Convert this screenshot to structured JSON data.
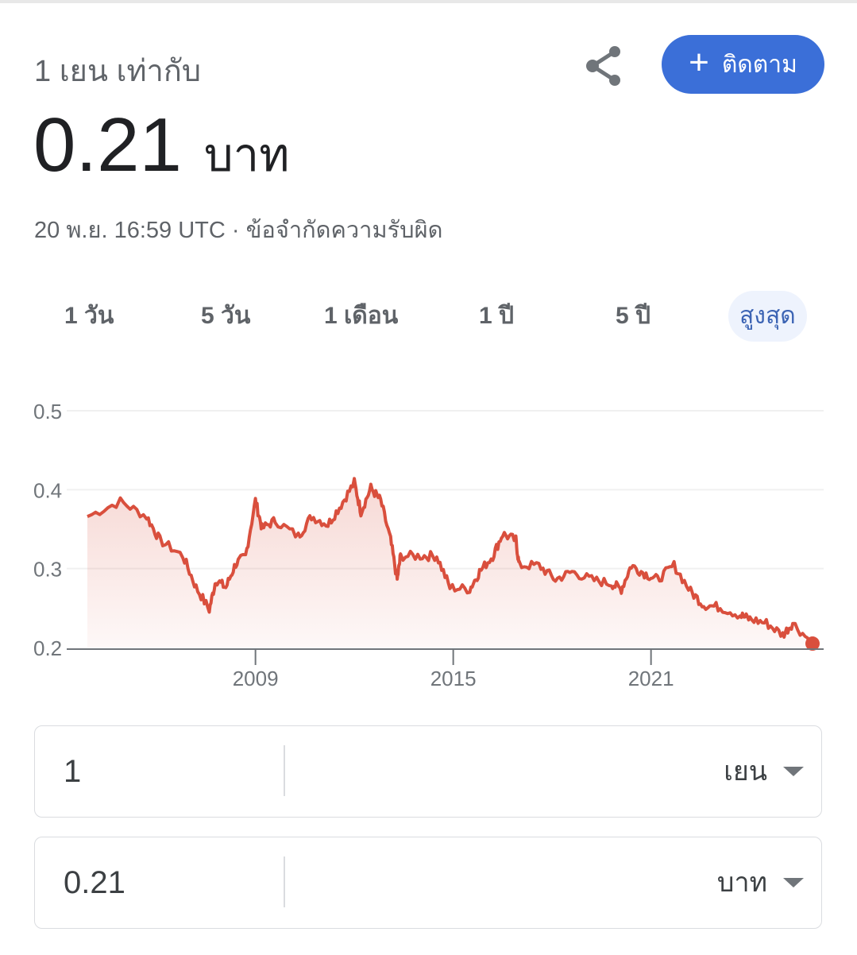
{
  "header": {
    "subtitle": "1 เยน เท่ากับ",
    "value": "0.21",
    "unit": "บาท",
    "timestamp": "20 พ.ย. 16:59 UTC · ",
    "disclaimer": "ข้อจำกัดความรับผิด",
    "follow_label": "ติดตาม",
    "follow_color": "#3b6fd8"
  },
  "tabs": [
    {
      "label": "1 วัน",
      "selected": false
    },
    {
      "label": "5 วัน",
      "selected": false
    },
    {
      "label": "1 เดือน",
      "selected": false
    },
    {
      "label": "1 ปี",
      "selected": false
    },
    {
      "label": "5 ปี",
      "selected": false
    },
    {
      "label": "สูงสุด",
      "selected": true
    }
  ],
  "chart_data": {
    "type": "area",
    "line_color": "#d94f3d",
    "grid": true,
    "ylim": [
      0.2,
      0.5
    ],
    "yticks": [
      "0.5",
      "0.4",
      "0.3",
      "0.2"
    ],
    "xlim": [
      2003.9,
      2025.9
    ],
    "xticks": [
      "2009",
      "2015",
      "2021"
    ],
    "x": [
      2003.9,
      2004.9,
      2005.7,
      2006.1,
      2006.8,
      2007.2,
      2007.6,
      2007.8,
      2008.1,
      2008.4,
      2008.7,
      2009.0,
      2009.2,
      2009.6,
      2010.3,
      2010.7,
      2011.2,
      2011.6,
      2012.0,
      2012.2,
      2012.5,
      2012.8,
      2013.1,
      2013.3,
      2013.4,
      2014.0,
      2014.5,
      2014.9,
      2015.5,
      2015.8,
      2016.2,
      2016.5,
      2016.9,
      2017.0,
      2017.6,
      2018.1,
      2018.6,
      2019.2,
      2019.8,
      2020.1,
      2020.4,
      2020.8,
      2021.2,
      2021.7,
      2022.2,
      2022.6,
      2023.1,
      2023.7,
      2024.0,
      2024.5,
      2025.0,
      2025.3,
      2025.9
    ],
    "y": [
      0.366,
      0.385,
      0.366,
      0.336,
      0.316,
      0.276,
      0.248,
      0.286,
      0.276,
      0.306,
      0.316,
      0.386,
      0.351,
      0.361,
      0.341,
      0.366,
      0.356,
      0.381,
      0.409,
      0.372,
      0.402,
      0.386,
      0.336,
      0.286,
      0.316,
      0.316,
      0.316,
      0.276,
      0.274,
      0.296,
      0.316,
      0.344,
      0.336,
      0.304,
      0.304,
      0.286,
      0.296,
      0.286,
      0.281,
      0.274,
      0.304,
      0.294,
      0.286,
      0.304,
      0.271,
      0.254,
      0.251,
      0.241,
      0.236,
      0.231,
      0.216,
      0.231,
      0.205
    ]
  },
  "converter": {
    "from_value": "1",
    "from_currency": "เยน",
    "to_value": "0.21",
    "to_currency": "บาท"
  }
}
